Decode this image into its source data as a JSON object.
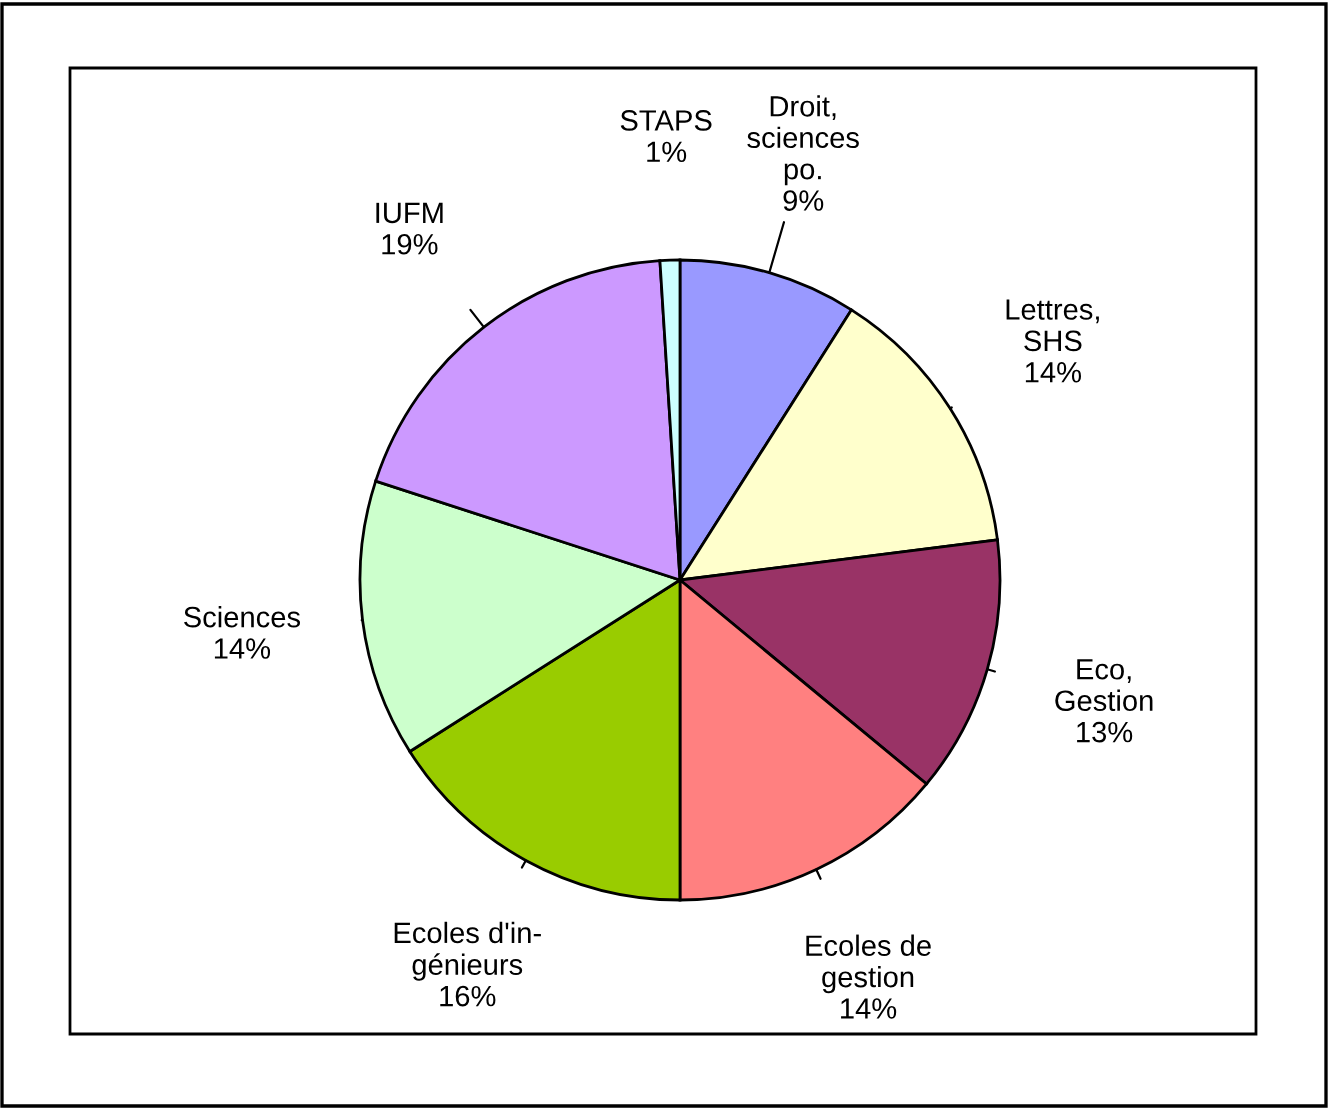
{
  "chart_data": {
    "type": "pie",
    "categories": [
      "Droit,\nsciences\npo.",
      "Lettres,\nSHS",
      "Eco,\nGestion",
      "Ecoles de\ngestion",
      "Ecoles d'in-\ngénieurs",
      "Sciences",
      "IUFM",
      "STAPS"
    ],
    "values": [
      9,
      14,
      13,
      14,
      16,
      14,
      19,
      1
    ],
    "value_labels": [
      "9%",
      "14%",
      "13%",
      "14%",
      "16%",
      "14%",
      "19%",
      "1%"
    ],
    "colors": [
      "#9999ff",
      "#ffffcc",
      "#993366",
      "#ff8080",
      "#99cc00",
      "#ccffcc",
      "#cc99ff",
      "#ccffff"
    ]
  }
}
